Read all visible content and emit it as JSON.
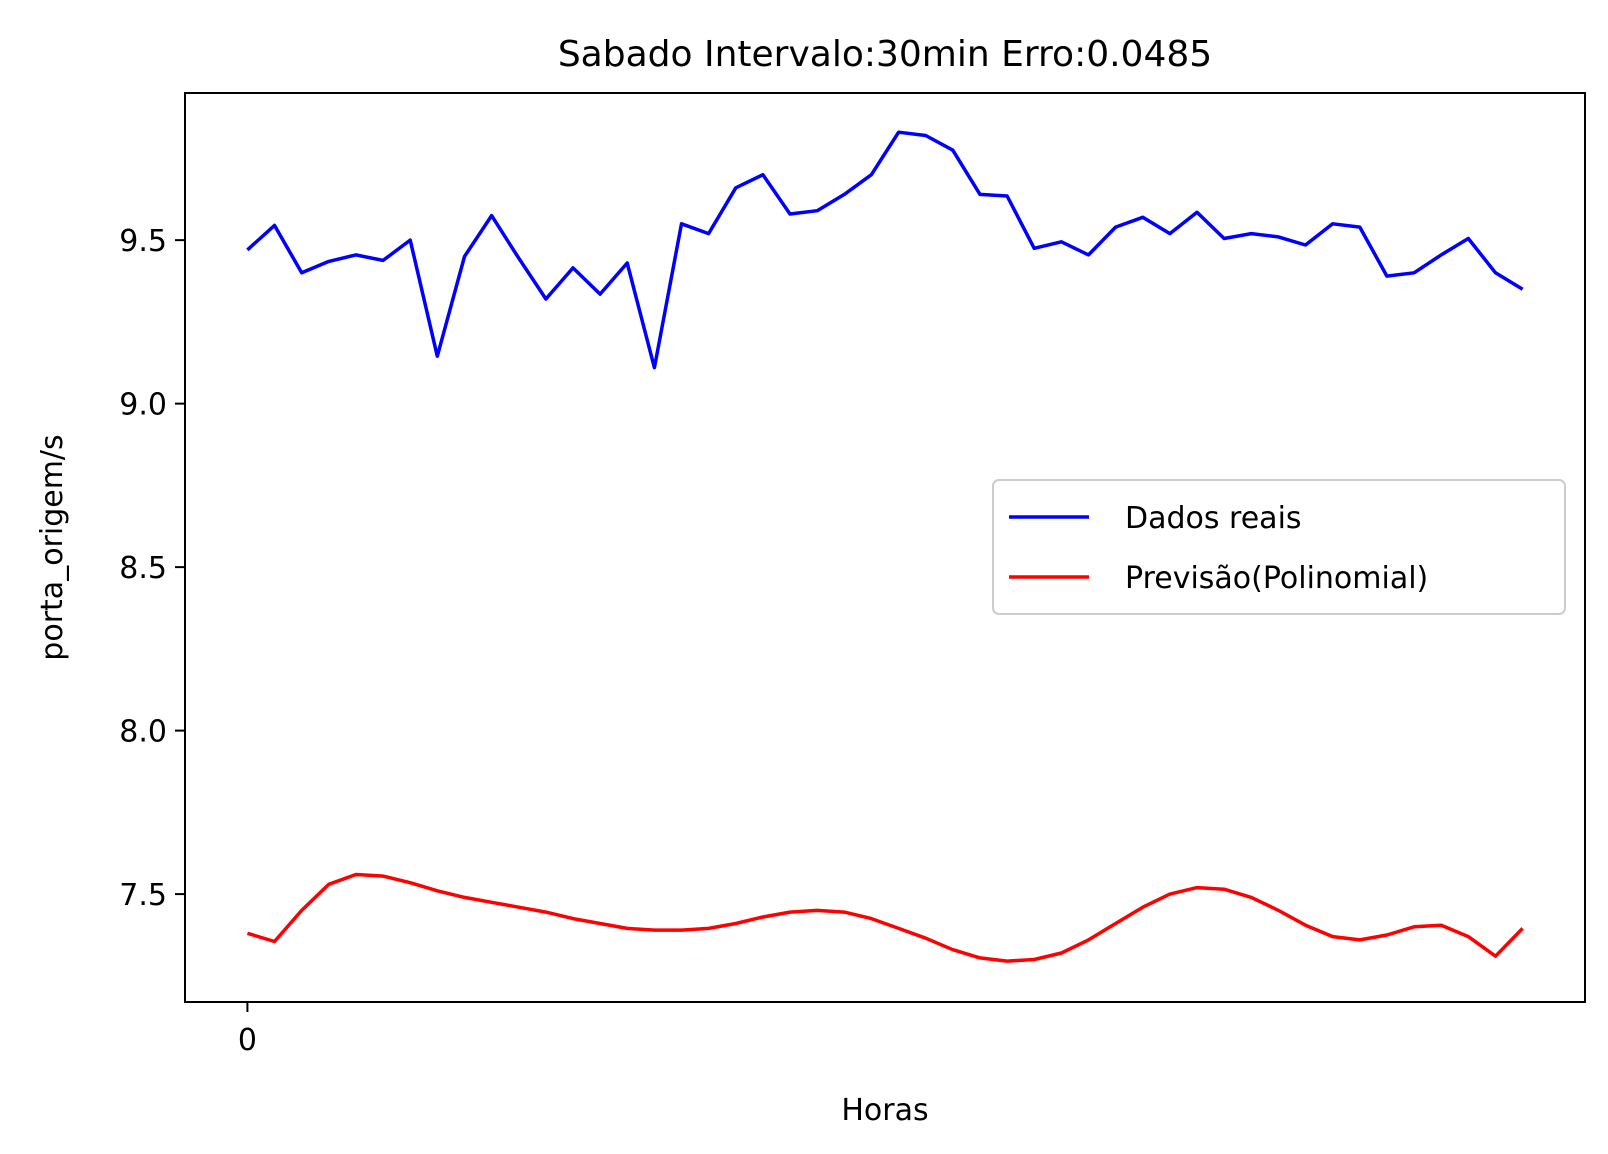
{
  "chart_data": {
    "type": "line",
    "title": "Sabado Intervalo:30min Erro:0.0485",
    "xlabel": "Horas",
    "ylabel": "porta_origem/s",
    "xlim": [
      -2.3,
      49.3
    ],
    "ylim": [
      7.17,
      9.95
    ],
    "xticks": [
      0
    ],
    "xtick_labels": [
      "0"
    ],
    "yticks": [
      7.5,
      8.0,
      8.5,
      9.0,
      9.5
    ],
    "ytick_labels": [
      "7.5",
      "8.0",
      "8.5",
      "9.0",
      "9.5"
    ],
    "grid": false,
    "legend_position": "center-right",
    "x": [
      0,
      1,
      2,
      3,
      4,
      5,
      6,
      7,
      8,
      9,
      10,
      11,
      12,
      13,
      14,
      15,
      16,
      17,
      18,
      19,
      20,
      21,
      22,
      23,
      24,
      25,
      26,
      27,
      28,
      29,
      30,
      31,
      32,
      33,
      34,
      35,
      36,
      37,
      38,
      39,
      40,
      41,
      42,
      43,
      44,
      45,
      46,
      47
    ],
    "series": [
      {
        "name": "Dados reais",
        "color": "#0000ff",
        "values": [
          9.47,
          9.545,
          9.4,
          9.435,
          9.455,
          9.438,
          9.5,
          9.145,
          9.45,
          9.575,
          9.445,
          9.32,
          9.415,
          9.335,
          9.43,
          9.11,
          9.55,
          9.52,
          9.66,
          9.7,
          9.58,
          9.59,
          9.64,
          9.7,
          9.83,
          9.82,
          9.775,
          9.64,
          9.635,
          9.475,
          9.495,
          9.455,
          9.54,
          9.57,
          9.52,
          9.585,
          9.505,
          9.52,
          9.51,
          9.485,
          9.55,
          9.54,
          9.39,
          9.4,
          9.455,
          9.505,
          9.4,
          9.35
        ]
      },
      {
        "name": "Previsão(Polinomial)",
        "color": "#ff0000",
        "values": [
          7.38,
          7.355,
          7.45,
          7.53,
          7.56,
          7.555,
          7.535,
          7.51,
          7.49,
          7.475,
          7.46,
          7.445,
          7.425,
          7.41,
          7.395,
          7.39,
          7.39,
          7.395,
          7.41,
          7.43,
          7.445,
          7.45,
          7.445,
          7.425,
          7.395,
          7.365,
          7.33,
          7.305,
          7.295,
          7.3,
          7.32,
          7.36,
          7.41,
          7.46,
          7.5,
          7.52,
          7.515,
          7.49,
          7.45,
          7.405,
          7.37,
          7.36,
          7.375,
          7.4,
          7.405,
          7.37,
          7.31,
          7.395
        ]
      }
    ]
  }
}
